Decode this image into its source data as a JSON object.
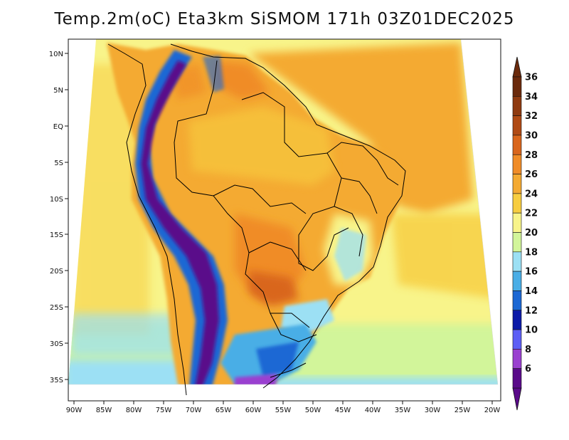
{
  "title": "Temp.2m(oC) Eta3km SiSMOM 171h 03Z01DEC2025",
  "lat_labels": [
    "10N",
    "5N",
    "EQ",
    "5S",
    "10S",
    "15S",
    "20S",
    "25S",
    "30S",
    "35S"
  ],
  "lon_labels": [
    "90W",
    "85W",
    "80W",
    "75W",
    "70W",
    "65W",
    "60W",
    "55W",
    "50W",
    "45W",
    "40W",
    "35W",
    "30W",
    "25W",
    "20W"
  ],
  "colorbar": {
    "labels": [
      "36",
      "34",
      "32",
      "30",
      "28",
      "26",
      "24",
      "22",
      "20",
      "18",
      "16",
      "14",
      "12",
      "10",
      "8",
      "6"
    ],
    "colors": [
      "#6b2a0c",
      "#8f3a10",
      "#b04a14",
      "#d9661c",
      "#f08c28",
      "#f4aa32",
      "#f7cd40",
      "#f8f48a",
      "#d2f59a",
      "#9ce0f4",
      "#4aaee6",
      "#1c68d4",
      "#0c1aa8",
      "#5d5ef5",
      "#9a40d0",
      "#5a0a8a"
    ]
  }
}
